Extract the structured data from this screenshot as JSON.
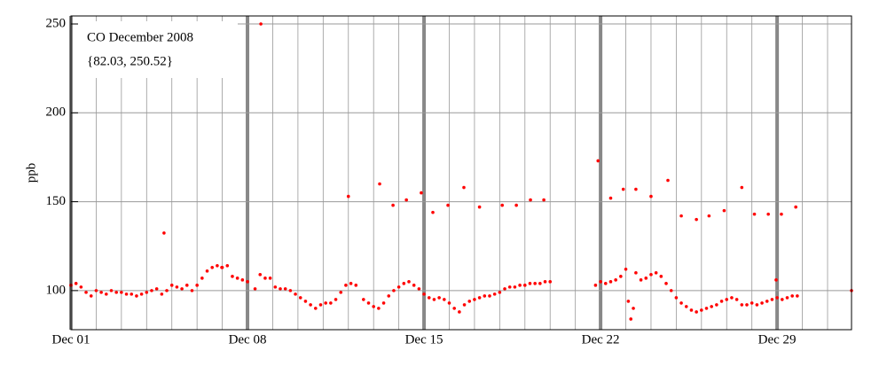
{
  "chart_data": {
    "type": "scatter",
    "title": "CO December 2008",
    "subtitle": "{82.03, 250.52}",
    "y_label": "ppb",
    "xlim": [
      1,
      31.95
    ],
    "ylim": [
      78,
      254.5
    ],
    "xticks": [
      {
        "value": 1,
        "label": "Dec 01"
      },
      {
        "value": 8,
        "label": "Dec 08"
      },
      {
        "value": 15,
        "label": "Dec 15"
      },
      {
        "value": 22,
        "label": "Dec 22"
      },
      {
        "value": 29,
        "label": "Dec 29"
      }
    ],
    "yticks": [
      100,
      150,
      200,
      250
    ],
    "grid": true,
    "series": [
      {
        "name": "CO",
        "color": "#ff0000",
        "x": [
          1.0,
          1.2,
          1.4,
          1.6,
          1.8,
          2.0,
          2.2,
          2.4,
          2.6,
          2.8,
          3.0,
          3.2,
          3.4,
          3.6,
          3.8,
          4.0,
          4.2,
          4.4,
          4.6,
          4.8,
          5.0,
          5.2,
          5.4,
          5.6,
          5.8,
          6.0,
          6.2,
          6.4,
          6.6,
          6.8,
          7.0,
          7.2,
          7.4,
          7.6,
          7.8,
          8.0,
          8.3,
          8.5,
          8.7,
          8.9,
          9.1,
          9.3,
          9.5,
          9.7,
          9.9,
          10.1,
          10.3,
          10.5,
          10.7,
          10.9,
          11.1,
          11.3,
          11.5,
          11.7,
          11.9,
          12.1,
          12.3,
          12.6,
          12.8,
          13.0,
          13.2,
          13.4,
          13.6,
          13.8,
          14.0,
          14.2,
          14.4,
          14.6,
          14.8,
          15.0,
          15.2,
          15.4,
          15.6,
          15.8,
          16.0,
          16.2,
          16.4,
          16.6,
          16.8,
          17.0,
          17.2,
          17.4,
          17.6,
          17.8,
          18.0,
          18.2,
          18.4,
          18.6,
          18.8,
          19.0,
          19.2,
          19.4,
          19.6,
          19.8,
          20.0,
          21.8,
          22.0,
          22.2,
          22.4,
          22.6,
          22.8,
          23.0,
          23.1,
          23.2,
          23.3,
          23.4,
          23.6,
          23.8,
          24.0,
          24.2,
          24.4,
          24.6,
          24.8,
          25.0,
          25.2,
          25.4,
          25.6,
          25.8,
          26.0,
          26.2,
          26.4,
          26.6,
          26.8,
          27.0,
          27.2,
          27.4,
          27.6,
          27.8,
          28.0,
          28.2,
          28.4,
          28.6,
          28.8,
          29.0,
          29.2,
          29.4,
          29.6,
          29.8,
          4.69,
          8.53,
          12.0,
          13.24,
          13.77,
          14.3,
          14.89,
          15.35,
          15.95,
          16.58,
          17.2,
          18.1,
          18.66,
          19.22,
          19.75,
          21.9,
          22.4,
          22.9,
          23.4,
          24.0,
          24.67,
          25.2,
          25.8,
          26.3,
          26.9,
          27.6,
          28.1,
          28.65,
          28.96,
          29.17,
          29.74,
          6.98,
          31.95
        ],
        "values": [
          103,
          104,
          102,
          99,
          97,
          100,
          99,
          98,
          100,
          99,
          99,
          98,
          98,
          97,
          98,
          99,
          100,
          101,
          98,
          100,
          103,
          102,
          101,
          103,
          100,
          103,
          107,
          111,
          113,
          114,
          113,
          114,
          108,
          107,
          106,
          105,
          101,
          109,
          107,
          107,
          102,
          101,
          101,
          100,
          98,
          96,
          94,
          92,
          90,
          92,
          93,
          93,
          95,
          99,
          103,
          104,
          103,
          95,
          93,
          91,
          90,
          93,
          97,
          100,
          102,
          104,
          105,
          103,
          101,
          98,
          96,
          95,
          96,
          95,
          93,
          90,
          88,
          92,
          94,
          95,
          96,
          97,
          97,
          98,
          99,
          101,
          102,
          102,
          103,
          103,
          104,
          104,
          104,
          105,
          105,
          103,
          105,
          104,
          105,
          106,
          108,
          112,
          94,
          84,
          90,
          110,
          106,
          107,
          109,
          110,
          108,
          104,
          100,
          96,
          93,
          91,
          89,
          88,
          89,
          90,
          91,
          92,
          94,
          95,
          96,
          95,
          92,
          92,
          93,
          92,
          93,
          94,
          95,
          96,
          95,
          96,
          97,
          97,
          132.4,
          250,
          153,
          160,
          148,
          151,
          155,
          144,
          148,
          158,
          147,
          148,
          148,
          151,
          151,
          173,
          152,
          157,
          157,
          153,
          162,
          142,
          140,
          142,
          145,
          158,
          143,
          143,
          106,
          143,
          147,
          113,
          100
        ]
      }
    ]
  }
}
